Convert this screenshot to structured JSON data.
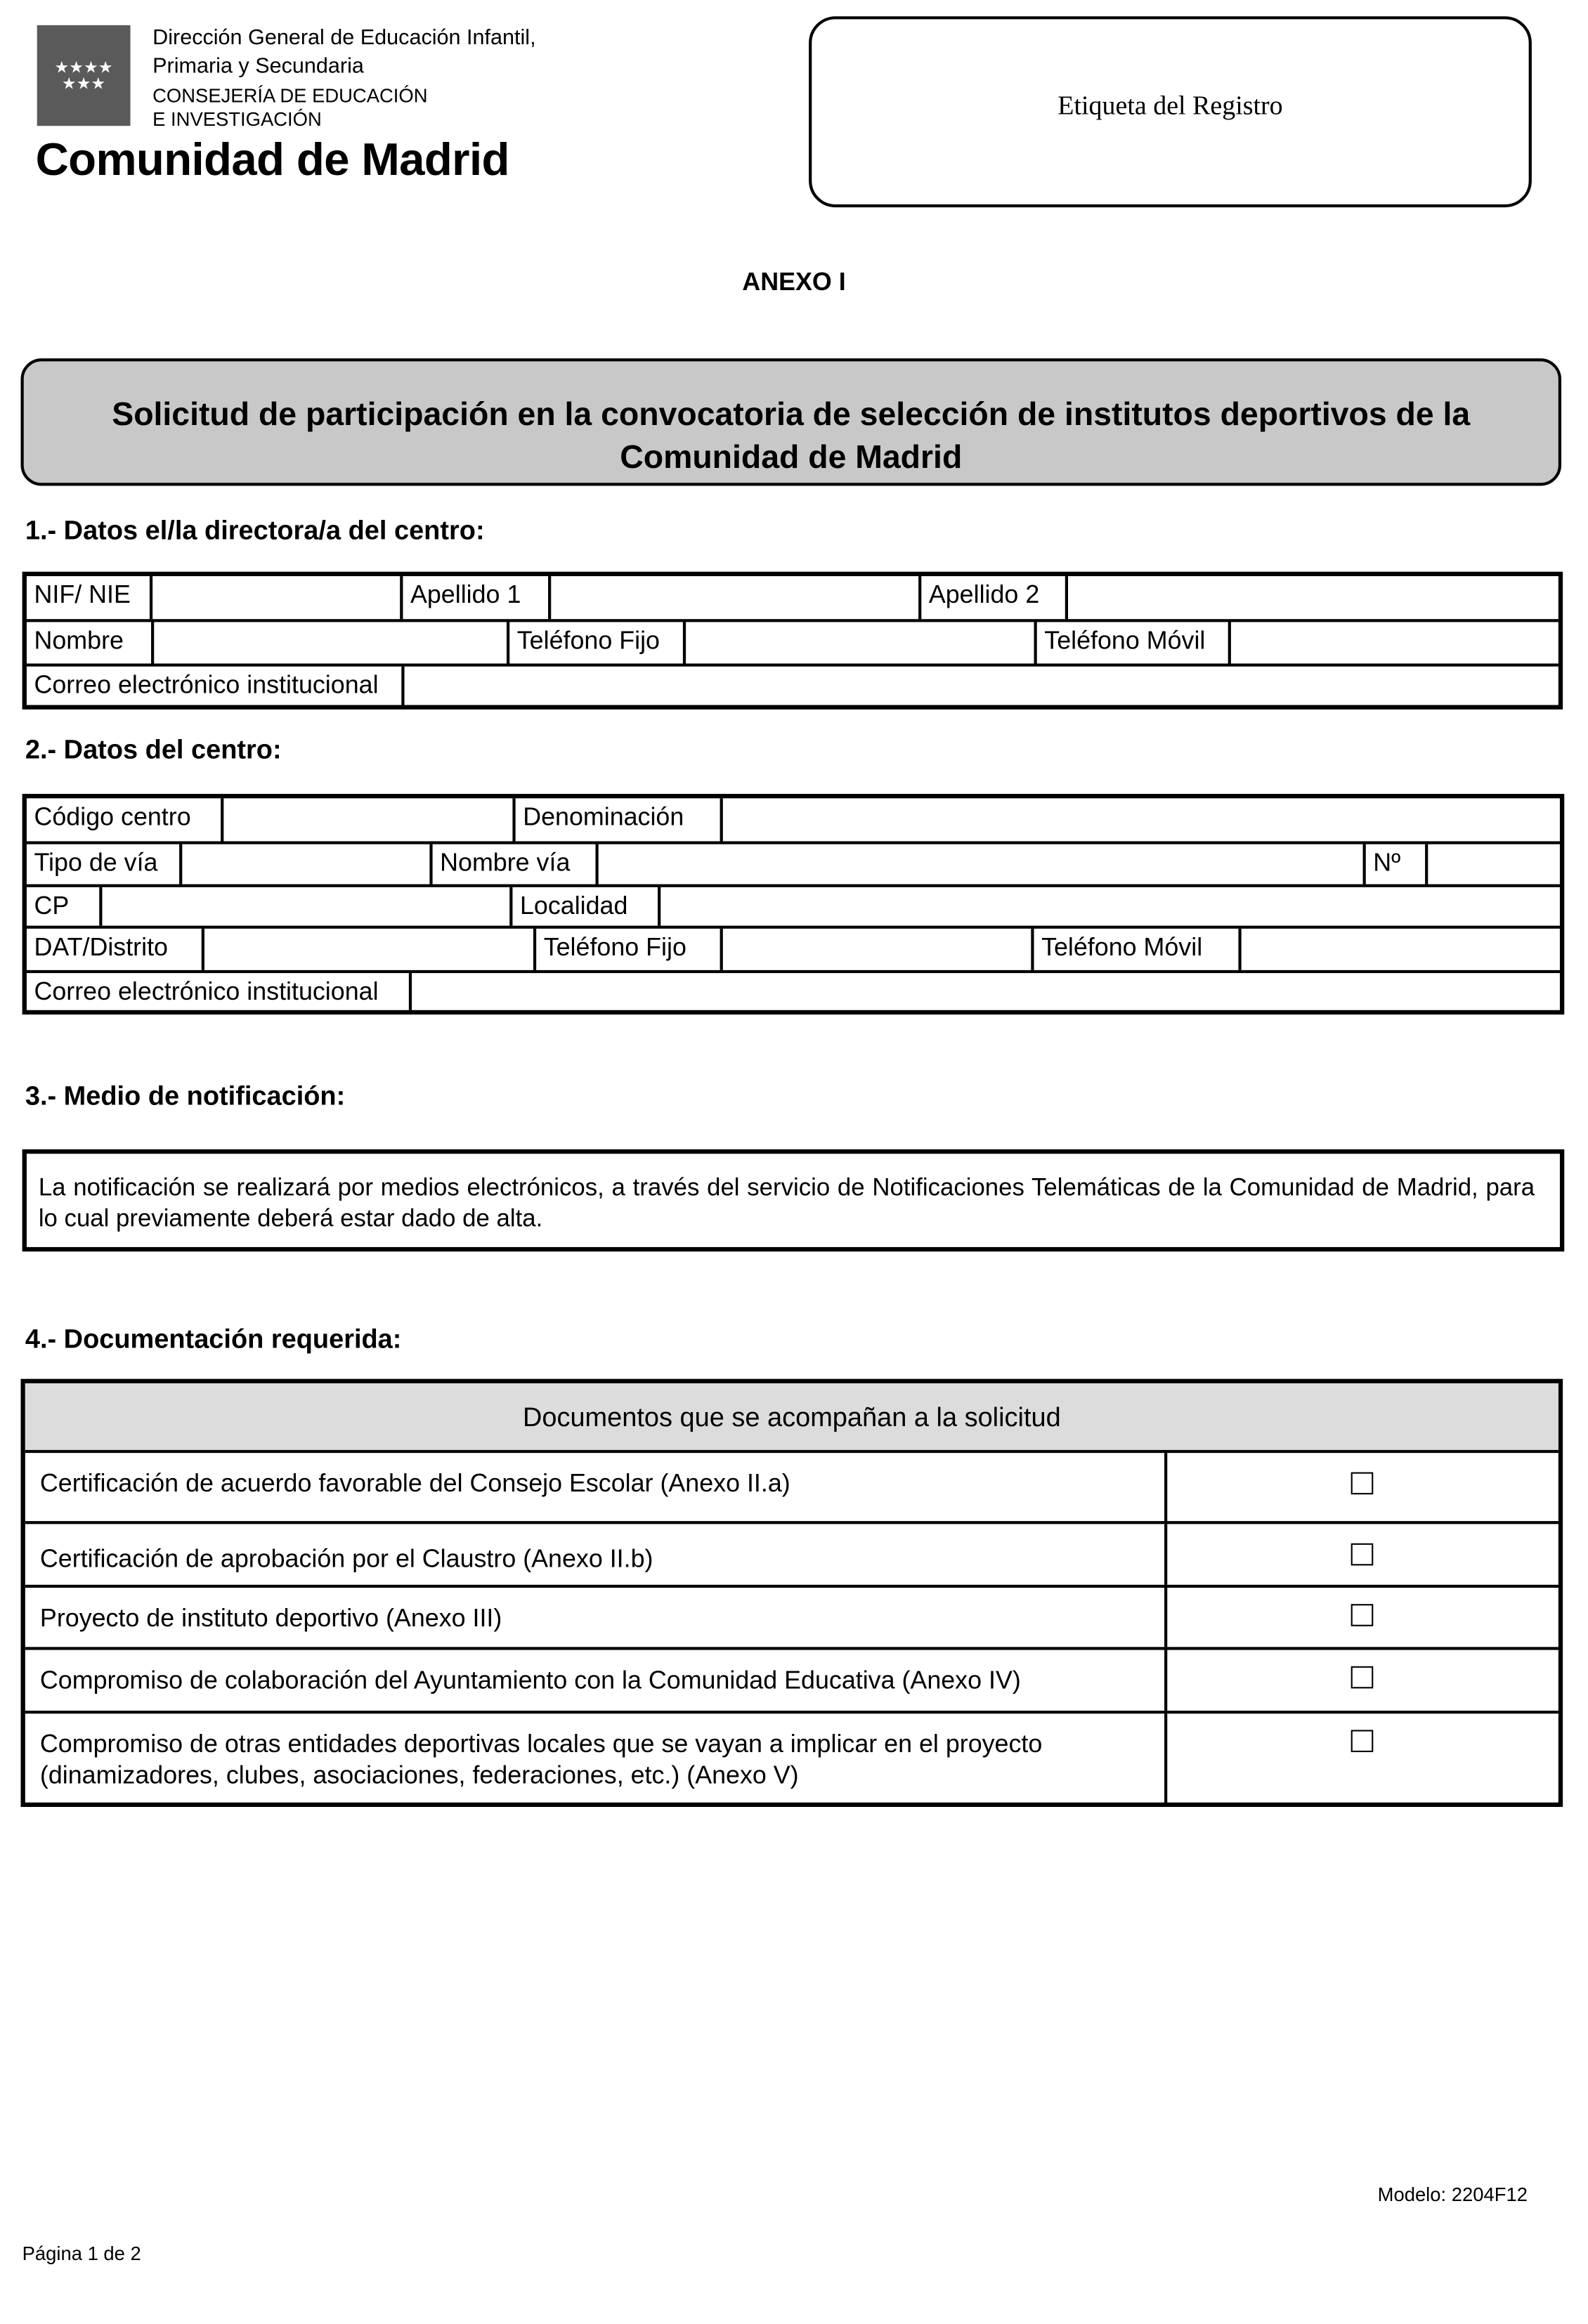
{
  "header": {
    "logo_lines": [
      "Dirección General de Educación Infantil,",
      "Primaria y Secundaria",
      "CONSEJERÍA DE EDUCACIÓN",
      "E INVESTIGACIÓN"
    ],
    "logo_stars": "★★★★\n★★★",
    "brand": "Comunidad de Madrid",
    "registry_label": "Etiqueta del Registro"
  },
  "annex": "ANEXO I",
  "title_line1": "Solicitud de participación en la convocatoria de selección de institutos deportivos de la",
  "title_line2": "Comunidad de Madrid",
  "section1": {
    "heading": "1.- Datos el/la directora/a del centro:",
    "labels": [
      "NIF/ NIE",
      "Apellido 1",
      "Apellido 2",
      "Nombre",
      "Teléfono Fijo",
      "Teléfono Móvil",
      "Correo electrónico institucional"
    ]
  },
  "section2": {
    "heading": "2.- Datos del centro:",
    "labels": [
      "Código centro",
      "Denominación",
      "Tipo de vía",
      "Nombre vía",
      "Nº",
      "CP",
      "Localidad",
      "DAT/Distrito",
      "Teléfono Fijo",
      "Teléfono Móvil",
      "Correo electrónico institucional"
    ]
  },
  "section3": {
    "heading": "3.- Medio de notificación:",
    "text": "La notificación se realizará por medios electrónicos, a través del servicio de Notificaciones Telemáticas de la Comunidad de Madrid, para lo cual previamente deberá estar dado de alta."
  },
  "section4": {
    "heading": "4.- Documentación requerida:",
    "table_header": "Documentos que se acompañan a la solicitud",
    "documents": [
      {
        "label": "Certificación de acuerdo favorable del Consejo Escolar (Anexo II.a)",
        "checked": false
      },
      {
        "label": "Certificación de aprobación por el Claustro (Anexo II.b)",
        "checked": false
      },
      {
        "label": "Proyecto de instituto deportivo (Anexo III)",
        "checked": false
      },
      {
        "label": "Compromiso de colaboración del Ayuntamiento con la Comunidad Educativa (Anexo IV)",
        "checked": false
      },
      {
        "label": "Compromiso de otras entidades deportivas locales que se vayan a implicar en el proyecto (dinamizadores, clubes, asociaciones, federaciones, etc.) (Anexo V)",
        "checked": false
      }
    ]
  },
  "footer": {
    "model": "Modelo: 2204F12",
    "page": "Página 1 de 2"
  }
}
